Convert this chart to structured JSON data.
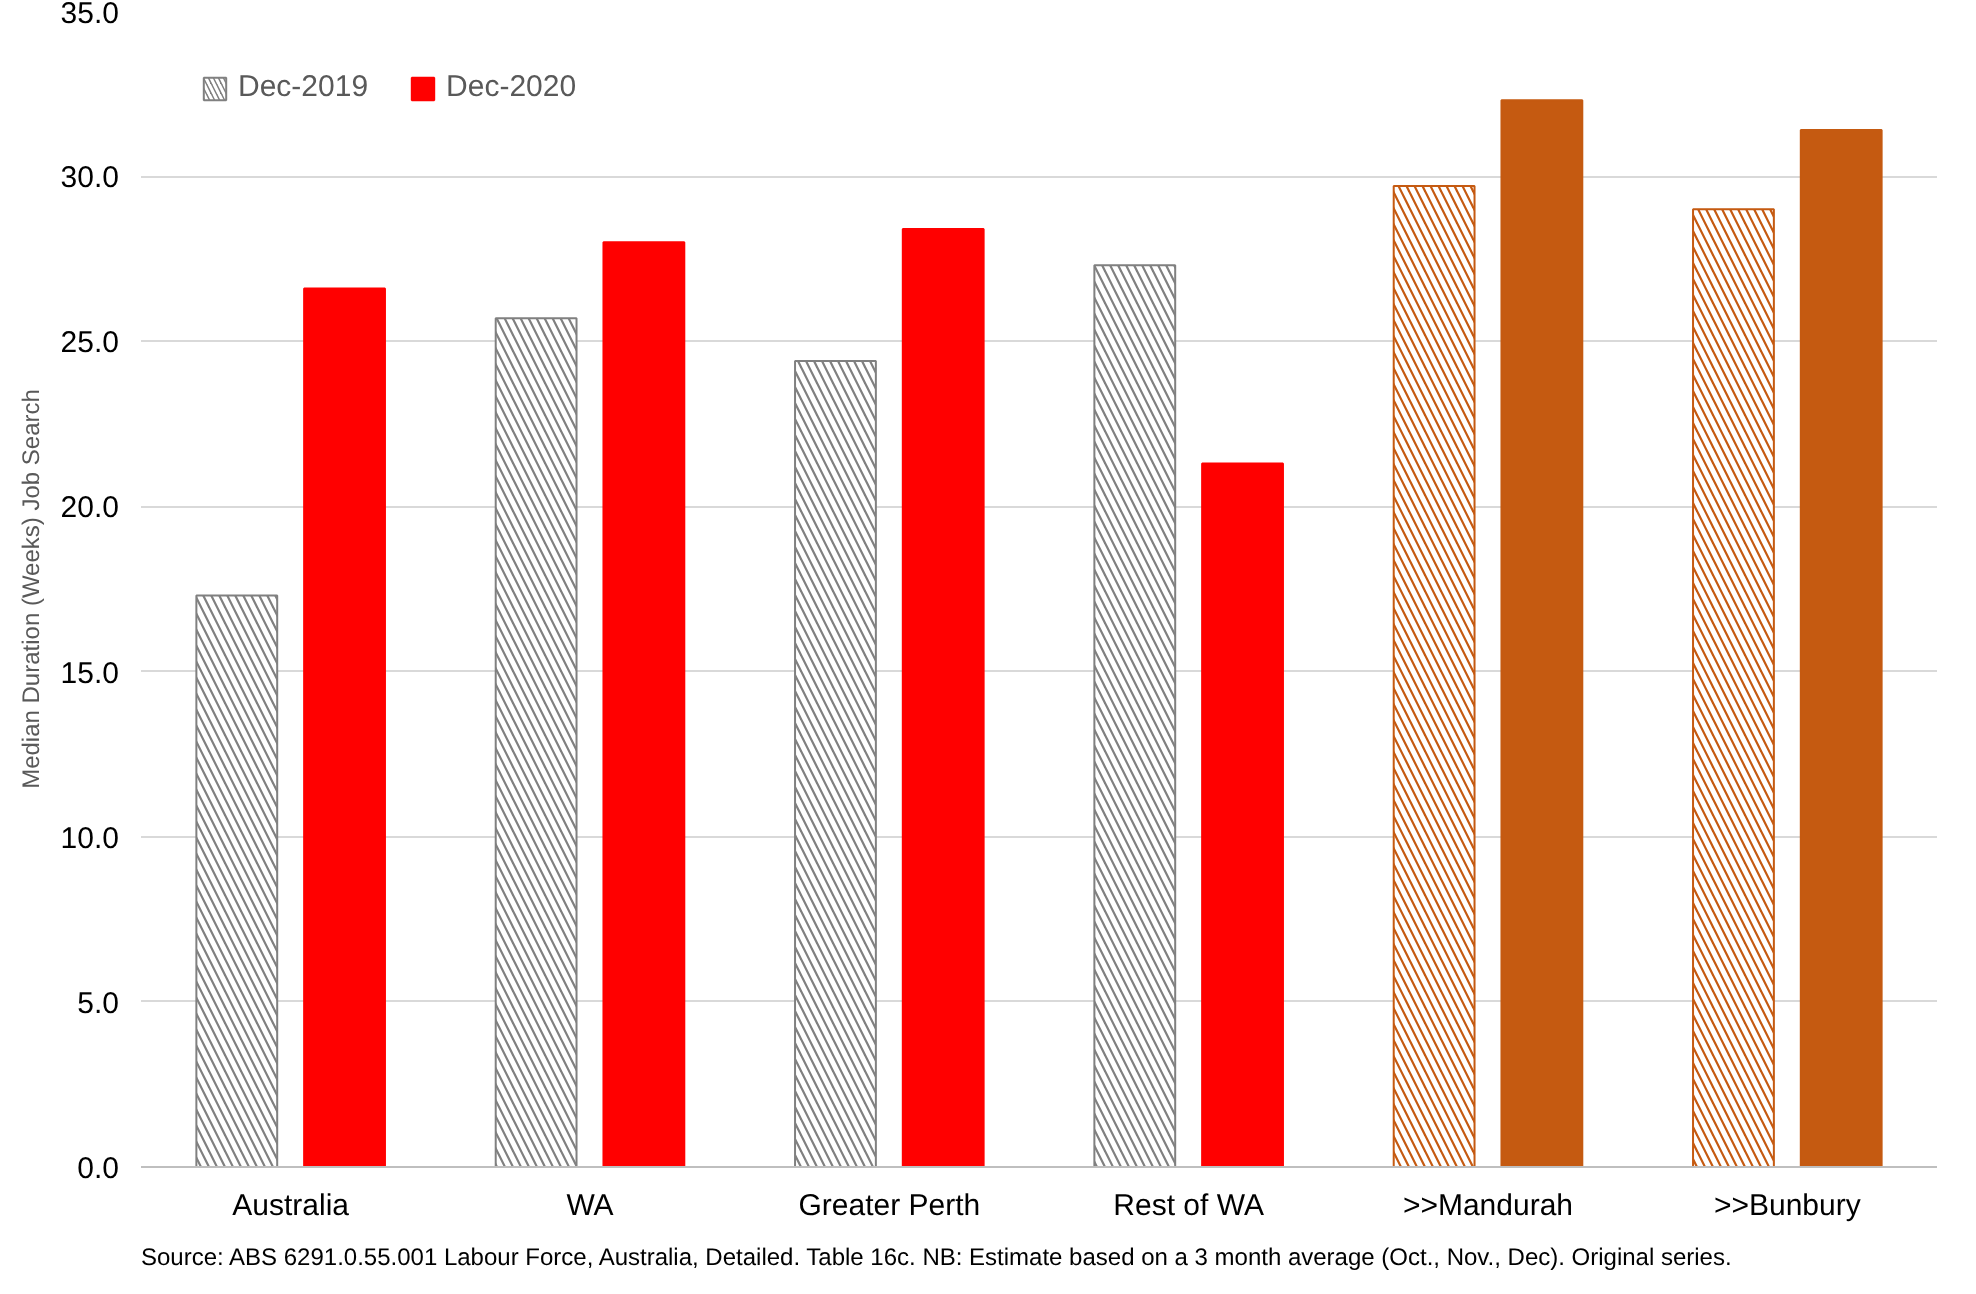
{
  "chart_data": {
    "type": "bar",
    "ylabel": "Median Duration (Weeks) Job Search",
    "categories": [
      "Australia",
      "WA",
      "Greater Perth",
      "Rest of WA",
      ">>Mandurah",
      ">>Bunbury"
    ],
    "series": [
      {
        "name": "Dec-2019",
        "color": "#808080",
        "colors": [
          "#808080",
          "#808080",
          "#808080",
          "#808080",
          "#c55a11",
          "#c55a11"
        ],
        "values": [
          17.3,
          25.7,
          24.4,
          27.3,
          29.7,
          29.0
        ]
      },
      {
        "name": "Dec-2020",
        "color": "#ff0000",
        "colors": [
          "#ff0000",
          "#ff0000",
          "#ff0000",
          "#ff0000",
          "#c55a11",
          "#c55a11"
        ],
        "values": [
          26.6,
          28.0,
          28.4,
          21.3,
          32.3,
          31.4
        ]
      }
    ],
    "ylim": [
      0,
      35
    ],
    "yticks": [
      {
        "value": 0,
        "label": "0.0"
      },
      {
        "value": 5,
        "label": "5.0"
      },
      {
        "value": 10,
        "label": "10.0"
      },
      {
        "value": 15,
        "label": "15.0"
      },
      {
        "value": 20,
        "label": "20.0"
      },
      {
        "value": 25,
        "label": "25.0"
      },
      {
        "value": 30,
        "label": "30.0"
      },
      {
        "value": 35,
        "label": "35.0"
      }
    ],
    "grid": "y",
    "legend": "top left",
    "annotations": [
      "Source: ABS 6291.0.55.001  Labour Force, Australia, Detailed. Table 16c. NB: Estimate based on a 3 month average (Oct., Nov., Dec). Original series."
    ]
  }
}
